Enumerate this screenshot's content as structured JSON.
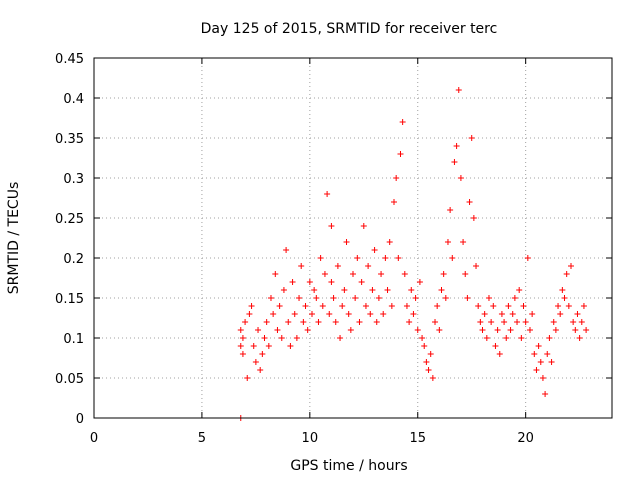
{
  "chart_data": {
    "type": "scatter",
    "title": "Day 125 of 2015, SRMTID for receiver terc",
    "xlabel": "GPS time / hours",
    "ylabel": "SRMTID / TECUs",
    "xlim": [
      0,
      24
    ],
    "ylim": [
      0,
      0.45
    ],
    "xticks": [
      0,
      5,
      10,
      15,
      20
    ],
    "xtick_labels": [
      "0",
      "5",
      "10",
      "15",
      "20"
    ],
    "yticks": [
      0,
      0.05,
      0.1,
      0.15,
      0.2,
      0.25,
      0.3,
      0.35,
      0.4,
      0.45
    ],
    "ytick_labels": [
      "0",
      "0.05",
      "0.1",
      "0.15",
      "0.2",
      "0.25",
      "0.3",
      "0.35",
      "0.4",
      "0.45"
    ],
    "grid": true,
    "marker": "+",
    "color": "#ff0000",
    "series": [
      {
        "name": "SRMTID",
        "x": [
          6.8,
          6.8,
          6.8,
          6.9,
          6.9,
          7.0,
          7.1,
          7.2,
          7.3,
          7.4,
          7.5,
          7.6,
          7.7,
          7.8,
          7.9,
          8.0,
          8.1,
          8.2,
          8.3,
          8.4,
          8.5,
          8.6,
          8.7,
          8.8,
          8.9,
          9.0,
          9.1,
          9.2,
          9.3,
          9.4,
          9.5,
          9.6,
          9.7,
          9.8,
          9.9,
          10.0,
          10.1,
          10.2,
          10.3,
          10.4,
          10.5,
          10.6,
          10.7,
          10.8,
          10.9,
          11.0,
          11.0,
          11.1,
          11.2,
          11.3,
          11.4,
          11.5,
          11.6,
          11.7,
          11.8,
          11.9,
          12.0,
          12.1,
          12.2,
          12.3,
          12.4,
          12.5,
          12.6,
          12.7,
          12.8,
          12.9,
          13.0,
          13.1,
          13.2,
          13.3,
          13.4,
          13.5,
          13.6,
          13.7,
          13.8,
          13.9,
          14.0,
          14.1,
          14.2,
          14.3,
          14.4,
          14.5,
          14.6,
          14.7,
          14.8,
          14.9,
          15.0,
          15.1,
          15.2,
          15.3,
          15.4,
          15.5,
          15.6,
          15.7,
          15.8,
          15.9,
          16.0,
          16.1,
          16.2,
          16.3,
          16.4,
          16.5,
          16.6,
          16.7,
          16.8,
          16.9,
          17.0,
          17.1,
          17.2,
          17.3,
          17.4,
          17.5,
          17.6,
          17.7,
          17.8,
          17.9,
          18.0,
          18.1,
          18.2,
          18.3,
          18.4,
          18.5,
          18.6,
          18.7,
          18.8,
          18.9,
          19.0,
          19.1,
          19.2,
          19.3,
          19.4,
          19.5,
          19.6,
          19.7,
          19.8,
          19.9,
          20.0,
          20.1,
          20.2,
          20.3,
          20.4,
          20.5,
          20.6,
          20.7,
          20.8,
          20.9,
          21.0,
          21.1,
          21.2,
          21.3,
          21.4,
          21.5,
          21.6,
          21.7,
          21.8,
          21.9,
          22.0,
          22.1,
          22.2,
          22.3,
          22.4,
          22.5,
          22.6,
          22.7,
          22.8
        ],
        "y": [
          0.0,
          0.11,
          0.09,
          0.1,
          0.08,
          0.12,
          0.05,
          0.13,
          0.14,
          0.09,
          0.07,
          0.11,
          0.06,
          0.08,
          0.1,
          0.12,
          0.09,
          0.15,
          0.13,
          0.18,
          0.11,
          0.14,
          0.1,
          0.16,
          0.21,
          0.12,
          0.09,
          0.17,
          0.13,
          0.1,
          0.15,
          0.19,
          0.12,
          0.14,
          0.11,
          0.17,
          0.13,
          0.16,
          0.15,
          0.12,
          0.2,
          0.14,
          0.18,
          0.28,
          0.13,
          0.24,
          0.17,
          0.15,
          0.12,
          0.19,
          0.1,
          0.14,
          0.16,
          0.22,
          0.13,
          0.11,
          0.18,
          0.15,
          0.2,
          0.12,
          0.17,
          0.24,
          0.14,
          0.19,
          0.13,
          0.16,
          0.21,
          0.12,
          0.15,
          0.18,
          0.13,
          0.2,
          0.16,
          0.22,
          0.14,
          0.27,
          0.3,
          0.2,
          0.33,
          0.37,
          0.18,
          0.14,
          0.12,
          0.16,
          0.13,
          0.15,
          0.11,
          0.17,
          0.1,
          0.09,
          0.07,
          0.06,
          0.08,
          0.05,
          0.12,
          0.14,
          0.11,
          0.16,
          0.18,
          0.15,
          0.22,
          0.26,
          0.2,
          0.32,
          0.34,
          0.41,
          0.3,
          0.22,
          0.18,
          0.15,
          0.27,
          0.35,
          0.25,
          0.19,
          0.14,
          0.12,
          0.11,
          0.13,
          0.1,
          0.15,
          0.12,
          0.14,
          0.09,
          0.11,
          0.08,
          0.13,
          0.12,
          0.1,
          0.14,
          0.11,
          0.13,
          0.15,
          0.12,
          0.16,
          0.1,
          0.14,
          0.12,
          0.2,
          0.11,
          0.13,
          0.08,
          0.06,
          0.09,
          0.07,
          0.05,
          0.03,
          0.08,
          0.1,
          0.07,
          0.12,
          0.11,
          0.14,
          0.13,
          0.16,
          0.15,
          0.18,
          0.14,
          0.19,
          0.12,
          0.11,
          0.13,
          0.1,
          0.12,
          0.14,
          0.11
        ]
      }
    ]
  }
}
